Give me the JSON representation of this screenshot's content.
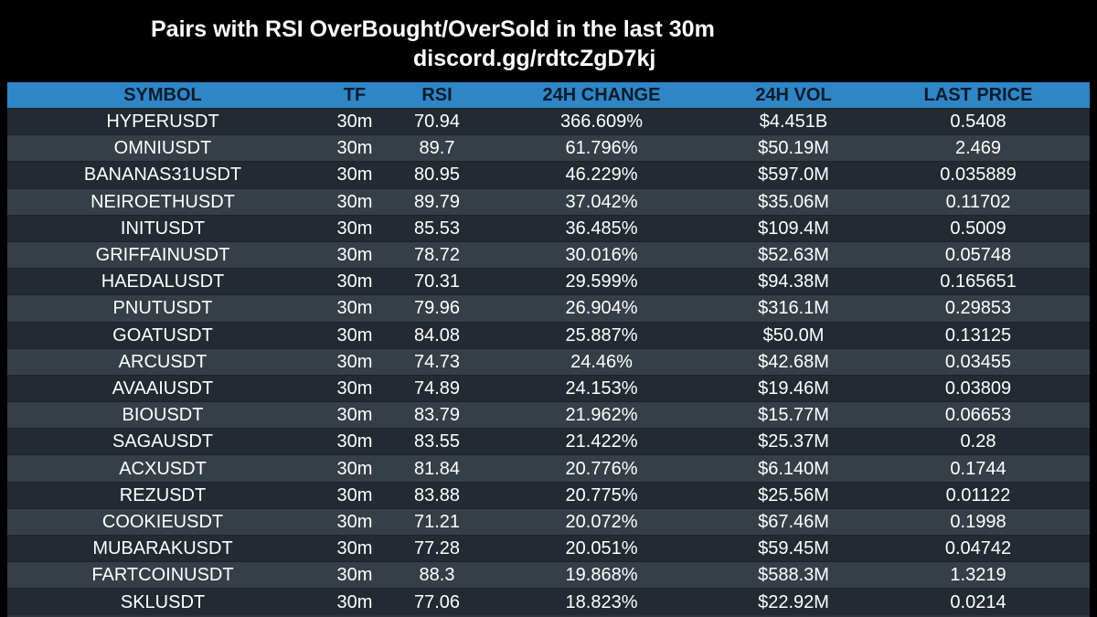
{
  "header": {
    "title": "Pairs with RSI OverBought/OverSold in the last 30m",
    "subtitle": "discord.gg/rdtcZgD7kj"
  },
  "table": {
    "columns": [
      "SYMBOL",
      "TF",
      "RSI",
      "24H CHANGE",
      "24H VOL",
      "LAST PRICE"
    ],
    "rows": [
      [
        "HYPERUSDT",
        "30m",
        "70.94",
        "366.609%",
        "$4.451B",
        "0.5408"
      ],
      [
        "OMNIUSDT",
        "30m",
        "89.7",
        "61.796%",
        "$50.19M",
        "2.469"
      ],
      [
        "BANANAS31USDT",
        "30m",
        "80.95",
        "46.229%",
        "$597.0M",
        "0.035889"
      ],
      [
        "NEIROETHUSDT",
        "30m",
        "89.79",
        "37.042%",
        "$35.06M",
        "0.11702"
      ],
      [
        "INITUSDT",
        "30m",
        "85.53",
        "36.485%",
        "$109.4M",
        "0.5009"
      ],
      [
        "GRIFFAINUSDT",
        "30m",
        "78.72",
        "30.016%",
        "$52.63M",
        "0.05748"
      ],
      [
        "HAEDALUSDT",
        "30m",
        "70.31",
        "29.599%",
        "$94.38M",
        "0.165651"
      ],
      [
        "PNUTUSDT",
        "30m",
        "79.96",
        "26.904%",
        "$316.1M",
        "0.29853"
      ],
      [
        "GOATUSDT",
        "30m",
        "84.08",
        "25.887%",
        "$50.0M",
        "0.13125"
      ],
      [
        "ARCUSDT",
        "30m",
        "74.73",
        "24.46%",
        "$42.68M",
        "0.03455"
      ],
      [
        "AVAAIUSDT",
        "30m",
        "74.89",
        "24.153%",
        "$19.46M",
        "0.03809"
      ],
      [
        "BIOUSDT",
        "30m",
        "83.79",
        "21.962%",
        "$15.77M",
        "0.06653"
      ],
      [
        "SAGAUSDT",
        "30m",
        "83.55",
        "21.422%",
        "$25.37M",
        "0.28"
      ],
      [
        "ACXUSDT",
        "30m",
        "81.84",
        "20.776%",
        "$6.140M",
        "0.1744"
      ],
      [
        "REZUSDT",
        "30m",
        "83.88",
        "20.775%",
        "$25.56M",
        "0.01122"
      ],
      [
        "COOKIEUSDT",
        "30m",
        "71.21",
        "20.072%",
        "$67.46M",
        "0.1998"
      ],
      [
        "MUBARAKUSDT",
        "30m",
        "77.28",
        "20.051%",
        "$59.45M",
        "0.04742"
      ],
      [
        "FARTCOINUSDT",
        "30m",
        "88.3",
        "19.868%",
        "$588.3M",
        "1.3219"
      ],
      [
        "SKLUSDT",
        "30m",
        "77.06",
        "18.823%",
        "$22.92M",
        "0.0214"
      ]
    ]
  },
  "colors": {
    "background": "#000000",
    "header_row": "#2f86c6",
    "header_text": "#0d1b2e",
    "row_dark": "#232a31",
    "row_light": "#363e46",
    "cell_text": "#ffffff"
  }
}
